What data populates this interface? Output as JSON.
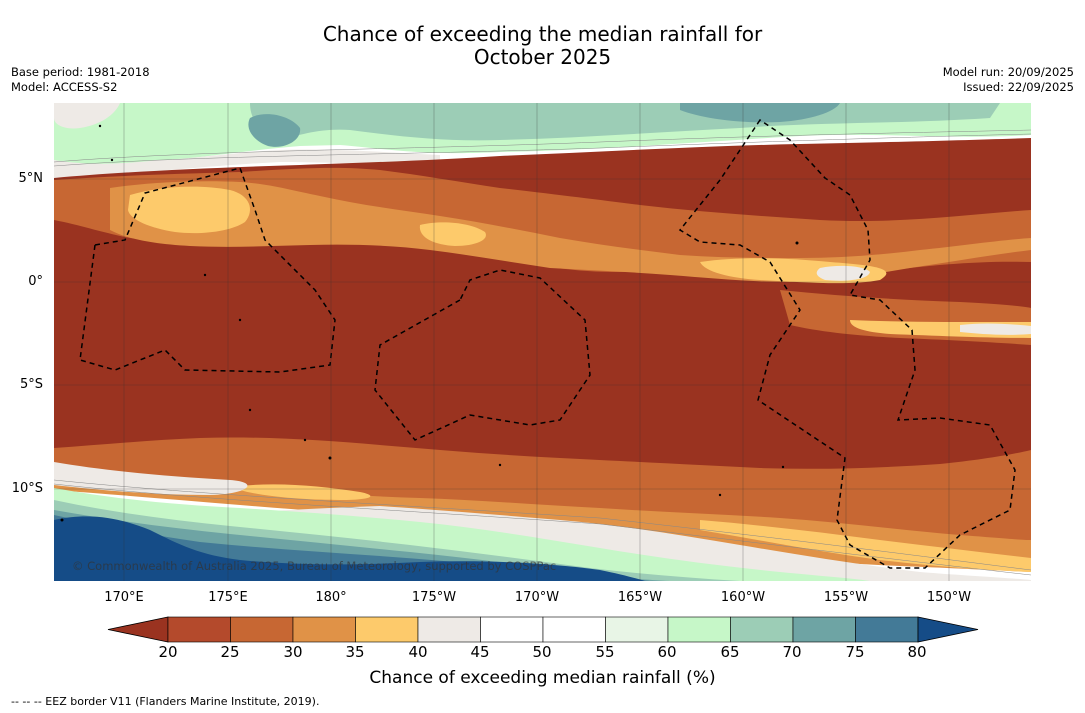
{
  "title": {
    "line1": "Chance of exceeding the median rainfall for",
    "line2": "October 2025"
  },
  "meta": {
    "base_period": "Base period: 1981-2018",
    "model": "Model: ACCESS-S2",
    "model_run": "Model run: 20/09/2025",
    "issued": "Issued: 22/09/2025"
  },
  "map": {
    "lat_labels": [
      "5°N",
      "0°",
      "5°S",
      "10°S"
    ],
    "lon_labels": [
      "170°E",
      "175°E",
      "180°",
      "175°W",
      "170°W",
      "165°W",
      "160°W",
      "155°W",
      "150°W"
    ],
    "copyright": "© Commonwealth of Australia 2025, Bureau of Meteorology, supported by COSPPac"
  },
  "colorbar": {
    "labels": [
      "20",
      "25",
      "30",
      "35",
      "40",
      "45",
      "50",
      "55",
      "60",
      "65",
      "70",
      "75",
      "80"
    ],
    "colors": [
      "#9a3320",
      "#b44a2c",
      "#c76733",
      "#e09247",
      "#fdca6b",
      "#eeeae6",
      "#ffffff",
      "#ffffff",
      "#e8f5e6",
      "#c6f7c8",
      "#9ccdb6",
      "#6ea4a4",
      "#437a97",
      "#154c87"
    ],
    "title": "Chance of exceeding median rainfall (%)"
  },
  "footer": "--  --  -- EEZ border V11 (Flanders Marine Institute, 2019)."
}
